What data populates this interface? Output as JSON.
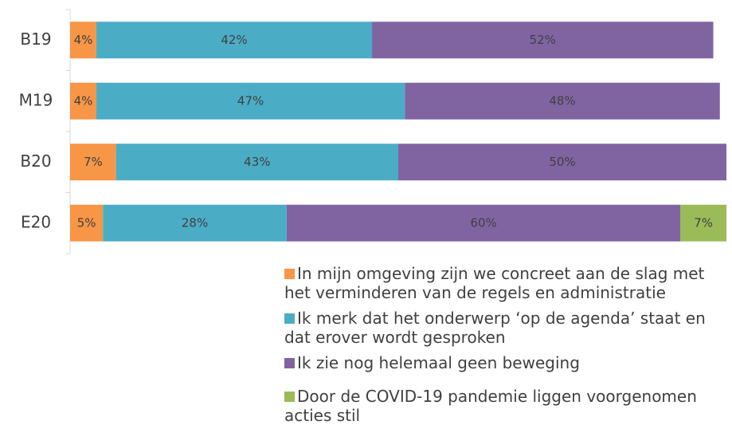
{
  "chart_data": {
    "type": "stacked-bar-horizontal",
    "categories": [
      "B19",
      "M19",
      "B20",
      "E20"
    ],
    "xlim": [
      0,
      100
    ],
    "legend": "bottom",
    "series": [
      {
        "name": "In mijn omgeving zijn we concreet aan de slag met het verminderen van de regels en administratie",
        "color": "#f79646",
        "values": [
          4,
          4,
          7,
          5
        ],
        "value_labels": [
          "4%",
          "4%",
          "7%",
          "5%"
        ]
      },
      {
        "name": "Ik merk dat het onderwerp ‘op de agenda’ staat en dat erover wordt gesproken",
        "color": "#4bacc6",
        "values": [
          42,
          47,
          43,
          28
        ],
        "value_labels": [
          "42%",
          "47%",
          "43%",
          "28%"
        ]
      },
      {
        "name": "Ik zie nog helemaal geen beweging",
        "color": "#8064a2",
        "values": [
          52,
          48,
          50,
          60
        ],
        "value_labels": [
          "52%",
          "48%",
          "50%",
          "60%"
        ]
      },
      {
        "name": "Door de COVID-19 pandemie liggen voorgenomen acties stil",
        "color": "#9bbb59",
        "values": [
          null,
          null,
          null,
          7
        ],
        "value_labels": [
          null,
          null,
          null,
          "7%"
        ]
      }
    ]
  }
}
